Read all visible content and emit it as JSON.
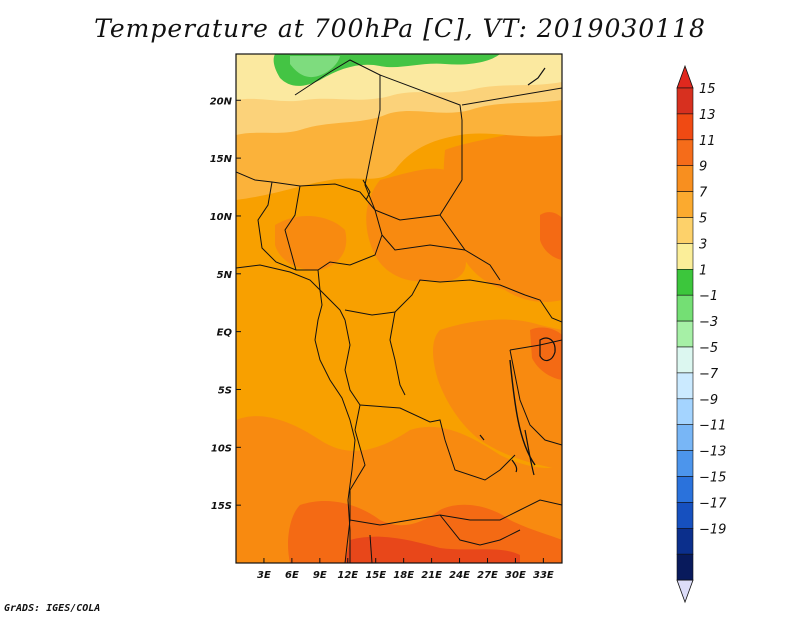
{
  "title": "Temperature at 700hPa [C], VT: 2019030118",
  "credit": "GrADS: IGES/COLA",
  "map": {
    "lon_range": [
      0,
      35
    ],
    "lat_range": [
      -20,
      24
    ],
    "x_ticks": [
      "3E",
      "6E",
      "9E",
      "12E",
      "15E",
      "18E",
      "21E",
      "24E",
      "27E",
      "30E",
      "33E"
    ],
    "y_ticks": [
      "20N",
      "15N",
      "10N",
      "5N",
      "EQ",
      "5S",
      "10S",
      "15S"
    ],
    "x_tick_values": [
      3,
      6,
      9,
      12,
      15,
      18,
      21,
      24,
      27,
      30,
      33
    ],
    "y_tick_values": [
      20,
      15,
      10,
      5,
      0,
      -5,
      -10,
      -15
    ]
  },
  "colorbar": {
    "labels": [
      "15",
      "13",
      "11",
      "9",
      "7",
      "5",
      "3",
      "1",
      "−1",
      "−3",
      "−5",
      "−7",
      "−9",
      "−11",
      "−13",
      "−15",
      "−17",
      "−19"
    ],
    "colors": [
      "#d7301f",
      "#f04a13",
      "#f56c1a",
      "#f88f1f",
      "#fbaa2f",
      "#fdd16a",
      "#fbee99",
      "#3cc63c",
      "#74df74",
      "#a6f0a6",
      "#dcf7f0",
      "#cbeaff",
      "#a4d4ff",
      "#78b6f6",
      "#4c95ec",
      "#2a72dc",
      "#1650bf",
      "#0b2f8c",
      "#081a5c"
    ],
    "top_color": "#e0281e",
    "bottom_color": "#dcdcf8"
  },
  "field_colors": {
    "t9": "#f8a000",
    "t11": "#f88a10",
    "t13": "#f46a14",
    "t15": "#e8471a",
    "t7": "#fbb23a",
    "t5": "#fbd27a",
    "t3": "#fbe9a0",
    "t1": "#44c444",
    "tm1": "#7edc7e"
  }
}
